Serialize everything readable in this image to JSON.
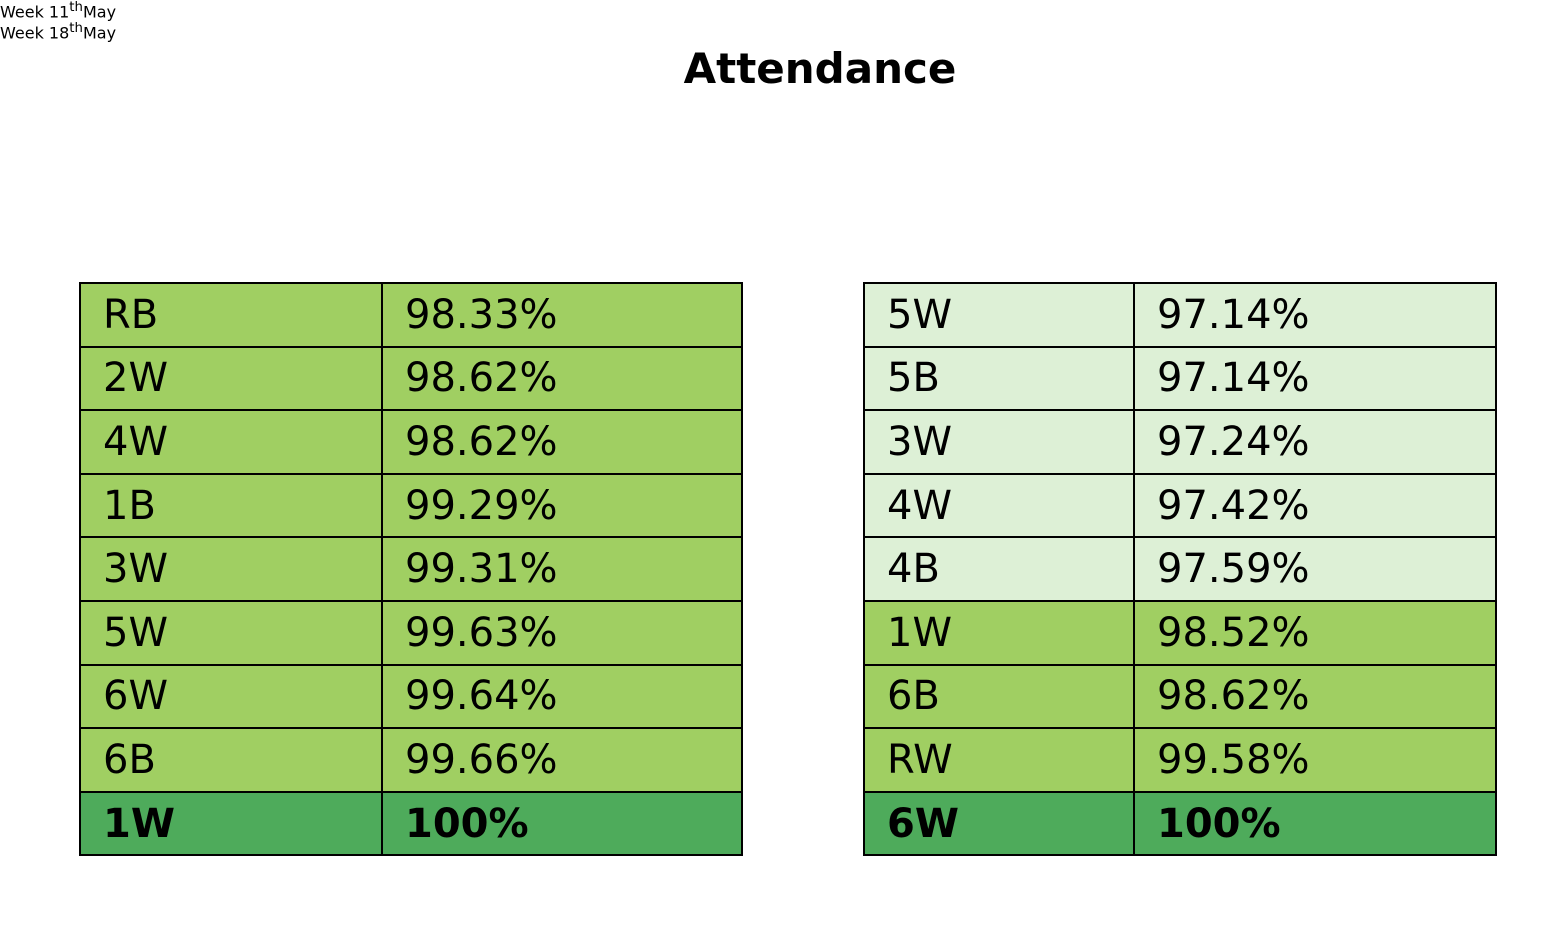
{
  "title": "Attendance",
  "tables": [
    {
      "heading": {
        "prefix": "Week 11",
        "sup": "th",
        "suffix": "May"
      },
      "rows": [
        {
          "class": "RB",
          "value": "98.33%",
          "fill": "#a0cf62",
          "bold": false
        },
        {
          "class": "2W",
          "value": "98.62%",
          "fill": "#a0cf62",
          "bold": false
        },
        {
          "class": "4W",
          "value": "98.62%",
          "fill": "#a0cf62",
          "bold": false
        },
        {
          "class": "1B",
          "value": "99.29%",
          "fill": "#a0cf62",
          "bold": false
        },
        {
          "class": "3W",
          "value": "99.31%",
          "fill": "#a0cf62",
          "bold": false
        },
        {
          "class": "5W",
          "value": "99.63%",
          "fill": "#a0cf62",
          "bold": false
        },
        {
          "class": "6W",
          "value": "99.64%",
          "fill": "#a0cf62",
          "bold": false
        },
        {
          "class": "6B",
          "value": "99.66%",
          "fill": "#a0cf62",
          "bold": false
        },
        {
          "class": "1W",
          "value": "100%",
          "fill": "#4eab5b",
          "bold": true
        }
      ]
    },
    {
      "heading": {
        "prefix": "Week 18",
        "sup": "th",
        "suffix": "May"
      },
      "rows": [
        {
          "class": "5W",
          "value": "97.14%",
          "fill": "#ddf0d6",
          "bold": false
        },
        {
          "class": "5B",
          "value": "97.14%",
          "fill": "#ddf0d6",
          "bold": false
        },
        {
          "class": "3W",
          "value": "97.24%",
          "fill": "#ddf0d6",
          "bold": false
        },
        {
          "class": "4W",
          "value": "97.42%",
          "fill": "#ddf0d6",
          "bold": false
        },
        {
          "class": "4B",
          "value": "97.59%",
          "fill": "#ddf0d6",
          "bold": false
        },
        {
          "class": "1W",
          "value": "98.52%",
          "fill": "#a0cf62",
          "bold": false
        },
        {
          "class": "6B",
          "value": "98.62%",
          "fill": "#a0cf62",
          "bold": false
        },
        {
          "class": "RW",
          "value": "99.58%",
          "fill": "#a0cf62",
          "bold": false
        },
        {
          "class": "6W",
          "value": "100%",
          "fill": "#4eab5b",
          "bold": true
        }
      ]
    }
  ]
}
